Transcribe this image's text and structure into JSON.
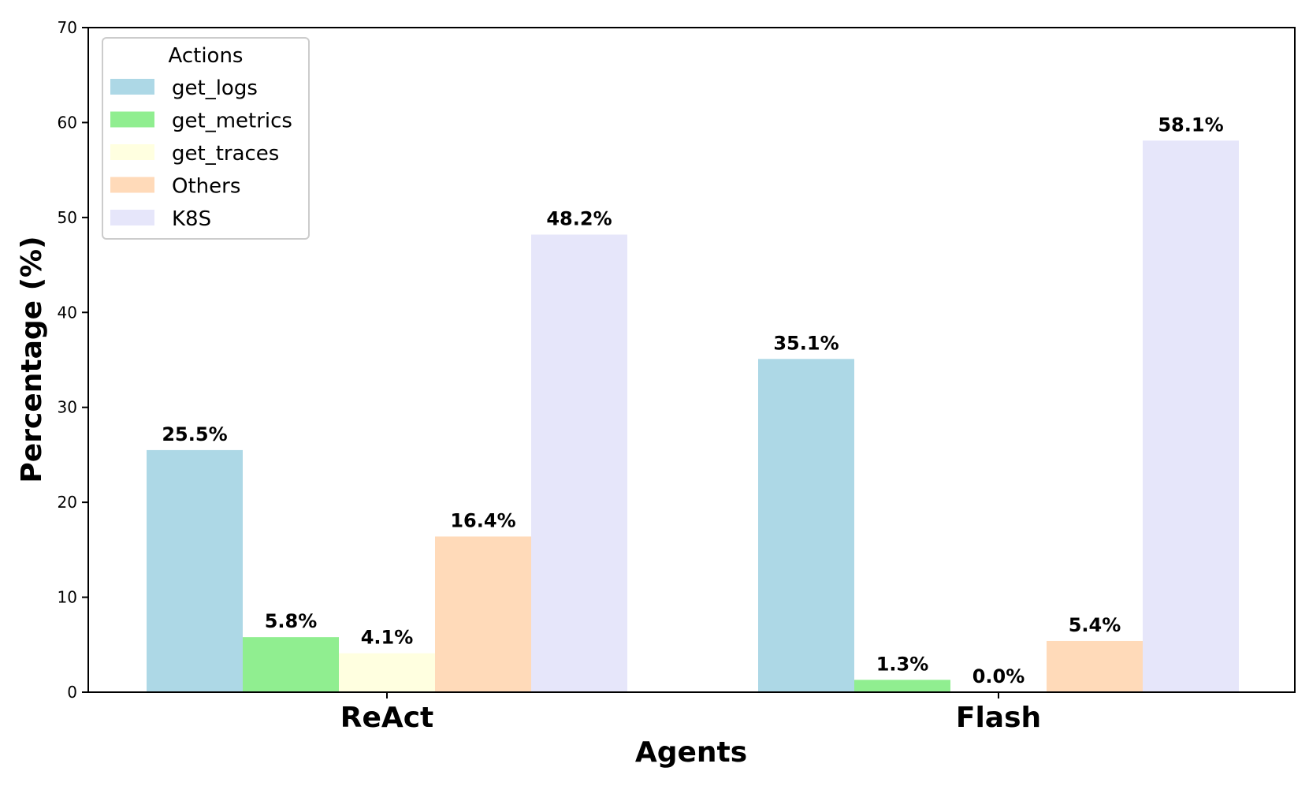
{
  "chart_data": {
    "type": "bar",
    "xlabel": "Agents",
    "ylabel": "Percentage (%)",
    "categories": [
      "ReAct",
      "Flash"
    ],
    "ylim": [
      0,
      70
    ],
    "yticks": [
      0,
      10,
      20,
      30,
      40,
      50,
      60,
      70
    ],
    "legend": {
      "title": "Actions",
      "placement": "top-left"
    },
    "grid": false,
    "series": [
      {
        "name": "get_logs",
        "color": "#add8e6",
        "values": [
          25.5,
          35.1
        ],
        "labels": [
          "25.5%",
          "35.1%"
        ]
      },
      {
        "name": "get_metrics",
        "color": "#90ee90",
        "values": [
          5.8,
          1.3
        ],
        "labels": [
          "5.8%",
          "1.3%"
        ]
      },
      {
        "name": "get_traces",
        "color": "#ffffe0",
        "values": [
          4.1,
          0.0
        ],
        "labels": [
          "4.1%",
          "0.0%"
        ]
      },
      {
        "name": "Others",
        "color": "#ffdab9",
        "values": [
          16.4,
          5.4
        ],
        "labels": [
          "16.4%",
          "5.4%"
        ]
      },
      {
        "name": "K8S",
        "color": "#e6e6fa",
        "values": [
          48.2,
          58.1
        ],
        "labels": [
          "48.2%",
          "58.1%"
        ]
      }
    ]
  }
}
